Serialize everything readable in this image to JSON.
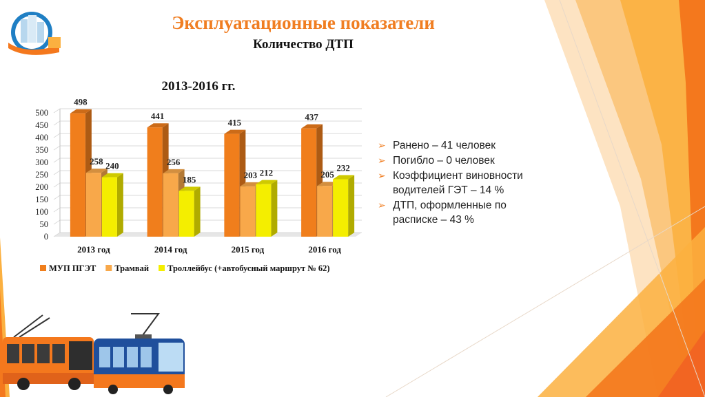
{
  "header": {
    "title": "Эксплуатационные показатели",
    "subtitle": "Количество ДТП"
  },
  "chart_data": {
    "type": "bar",
    "title": "2013-2016 гг.",
    "categories": [
      "2013 год",
      "2014 год",
      "2015 год",
      "2016 год"
    ],
    "series": [
      {
        "name": "МУП ПГЭТ",
        "values": [
          498,
          441,
          415,
          437
        ],
        "color": "#f07e1c"
      },
      {
        "name": "Трамвай",
        "values": [
          258,
          256,
          203,
          205
        ],
        "color": "#f8a84a"
      },
      {
        "name": "Троллейбус (+автобусный маршрут № 62)",
        "values": [
          240,
          185,
          212,
          232
        ],
        "color": "#f4ee00"
      }
    ],
    "y_ticks": [
      "0",
      "50",
      "100",
      "150",
      "200",
      "250",
      "300",
      "350",
      "400",
      "450",
      "500"
    ],
    "ylim": [
      0,
      500
    ],
    "grid": true,
    "legend_position": "bottom"
  },
  "bullets": [
    "Ранено – 41 человек",
    "Погибло – 0 человек",
    "Коэффициент виновности водителей ГЭТ – 14 %",
    "ДТП, оформленные по расписке – 43 %"
  ],
  "bullet_marker": "➢",
  "colors": {
    "accent": "#f07e22",
    "orange_dark": "#f4781d",
    "orange_light": "#fbb040"
  },
  "icons": [
    "city-logo-icon",
    "trolleybus-illustration",
    "tram-illustration"
  ]
}
